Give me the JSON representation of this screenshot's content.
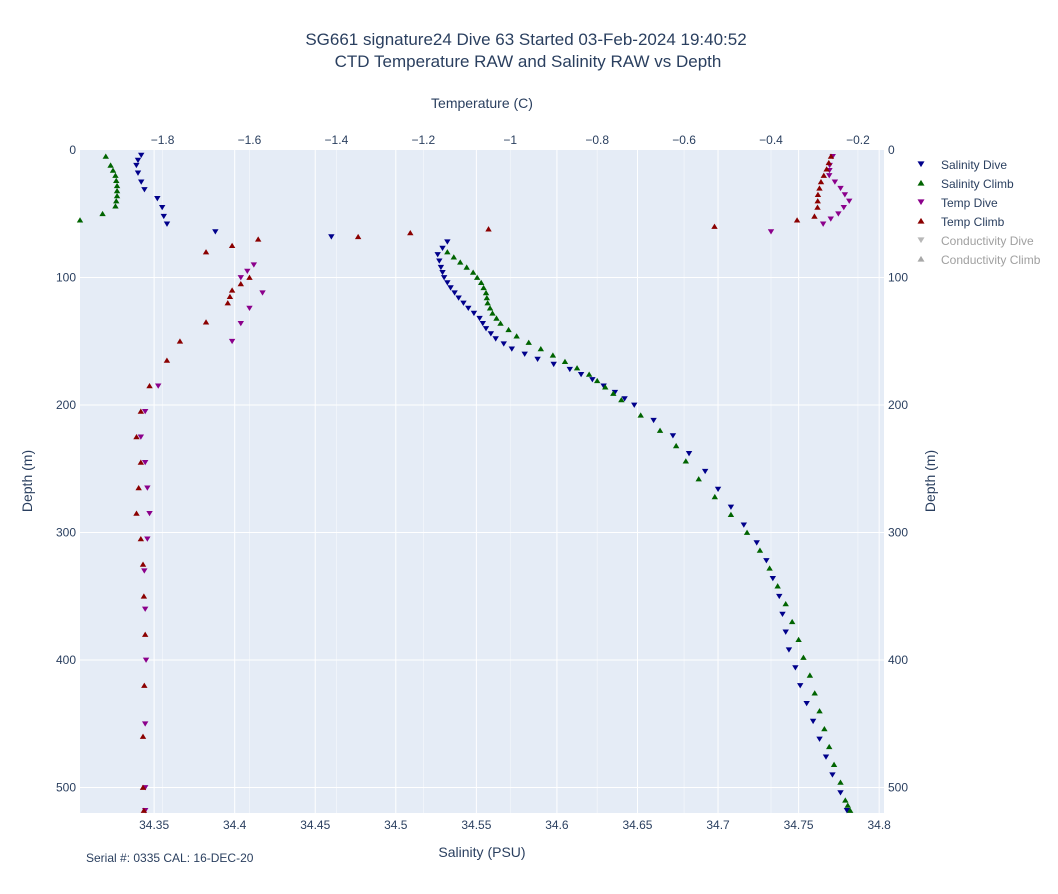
{
  "chart_data": {
    "type": "scatter",
    "title": "SG661 signature24 Dive 63 Started 03-Feb-2024 19:40:52",
    "subtitle": "CTD Temperature RAW and Salinity RAW vs Depth",
    "xlabel_bottom": "Salinity (PSU)",
    "xlabel_top": "Temperature (C)",
    "ylabel_left": "Depth (m)",
    "ylabel_right": "Depth (m)",
    "salinity_range": [
      34.304,
      34.803
    ],
    "temperature_range": [
      -1.99,
      -0.14
    ],
    "depth_range": [
      0,
      520
    ],
    "salinity_ticks": [
      34.35,
      34.4,
      34.45,
      34.5,
      34.55,
      34.6,
      34.65,
      34.7,
      34.75,
      34.8
    ],
    "temperature_ticks": [
      -1.8,
      -1.6,
      -1.4,
      -1.2,
      -1,
      -0.8,
      -0.6,
      -0.4,
      -0.2
    ],
    "depth_ticks": [
      0,
      100,
      200,
      300,
      400,
      500
    ],
    "grid": true,
    "legend_position": "right",
    "series": [
      {
        "name": "Salinity Dive",
        "axis": "salinity",
        "color": "#00008b",
        "marker": "triangle-down",
        "points": [
          [
            34.342,
            4
          ],
          [
            34.34,
            8
          ],
          [
            34.339,
            12
          ],
          [
            34.34,
            18
          ],
          [
            34.342,
            25
          ],
          [
            34.344,
            31
          ],
          [
            34.352,
            38
          ],
          [
            34.355,
            45
          ],
          [
            34.356,
            52
          ],
          [
            34.358,
            58
          ],
          [
            34.388,
            64
          ],
          [
            34.532,
            72
          ],
          [
            34.526,
            82
          ],
          [
            34.528,
            92
          ],
          [
            34.53,
            100
          ],
          [
            34.534,
            108
          ],
          [
            34.539,
            116
          ],
          [
            34.545,
            124
          ],
          [
            34.552,
            132
          ],
          [
            34.556,
            140
          ],
          [
            34.562,
            148
          ],
          [
            34.572,
            156
          ],
          [
            34.588,
            164
          ],
          [
            34.608,
            172
          ],
          [
            34.622,
            180
          ],
          [
            34.636,
            190
          ],
          [
            34.648,
            200
          ],
          [
            34.66,
            212
          ],
          [
            34.672,
            224
          ],
          [
            34.682,
            238
          ],
          [
            34.692,
            252
          ],
          [
            34.7,
            266
          ],
          [
            34.708,
            280
          ],
          [
            34.716,
            294
          ],
          [
            34.724,
            308
          ],
          [
            34.73,
            322
          ],
          [
            34.734,
            336
          ],
          [
            34.738,
            350
          ],
          [
            34.74,
            364
          ],
          [
            34.742,
            378
          ],
          [
            34.744,
            392
          ],
          [
            34.748,
            406
          ],
          [
            34.751,
            420
          ],
          [
            34.755,
            434
          ],
          [
            34.759,
            448
          ],
          [
            34.763,
            462
          ],
          [
            34.767,
            476
          ],
          [
            34.771,
            490
          ],
          [
            34.776,
            504
          ],
          [
            34.78,
            518
          ]
        ]
      },
      {
        "name": "Salinity Climb",
        "axis": "salinity",
        "color": "#006400",
        "marker": "triangle-up",
        "points": [
          [
            34.32,
            5
          ],
          [
            34.323,
            12
          ],
          [
            34.326,
            20
          ],
          [
            34.327,
            28
          ],
          [
            34.327,
            36
          ],
          [
            34.326,
            44
          ],
          [
            34.318,
            50
          ],
          [
            34.304,
            55
          ],
          [
            34.532,
            80
          ],
          [
            34.54,
            88
          ],
          [
            34.548,
            96
          ],
          [
            34.553,
            104
          ],
          [
            34.556,
            112
          ],
          [
            34.557,
            120
          ],
          [
            34.56,
            128
          ],
          [
            34.565,
            136
          ],
          [
            34.575,
            146
          ],
          [
            34.59,
            156
          ],
          [
            34.605,
            166
          ],
          [
            34.62,
            176
          ],
          [
            34.63,
            186
          ],
          [
            34.64,
            196
          ],
          [
            34.652,
            208
          ],
          [
            34.664,
            220
          ],
          [
            34.674,
            232
          ],
          [
            34.68,
            244
          ],
          [
            34.688,
            258
          ],
          [
            34.698,
            272
          ],
          [
            34.708,
            286
          ],
          [
            34.718,
            300
          ],
          [
            34.726,
            314
          ],
          [
            34.732,
            328
          ],
          [
            34.737,
            342
          ],
          [
            34.742,
            356
          ],
          [
            34.746,
            370
          ],
          [
            34.75,
            384
          ],
          [
            34.753,
            398
          ],
          [
            34.757,
            412
          ],
          [
            34.76,
            426
          ],
          [
            34.763,
            440
          ],
          [
            34.766,
            454
          ],
          [
            34.769,
            468
          ],
          [
            34.772,
            482
          ],
          [
            34.776,
            496
          ],
          [
            34.779,
            510
          ],
          [
            34.782,
            518
          ]
        ]
      },
      {
        "name": "Temp Dive",
        "axis": "temperature",
        "color": "#8b008b",
        "marker": "triangle-down",
        "points": [
          [
            -0.258,
            5
          ],
          [
            -0.265,
            12
          ],
          [
            -0.266,
            20
          ],
          [
            -0.24,
            30
          ],
          [
            -0.22,
            40
          ],
          [
            -0.245,
            50
          ],
          [
            -0.28,
            58
          ],
          [
            -0.4,
            64
          ],
          [
            -1.59,
            90
          ],
          [
            -1.62,
            100
          ],
          [
            -1.57,
            112
          ],
          [
            -1.6,
            124
          ],
          [
            -1.62,
            136
          ],
          [
            -1.64,
            150
          ],
          [
            -1.81,
            185
          ],
          [
            -1.84,
            205
          ],
          [
            -1.85,
            225
          ],
          [
            -1.84,
            245
          ],
          [
            -1.835,
            265
          ],
          [
            -1.83,
            285
          ],
          [
            -1.835,
            305
          ],
          [
            -1.842,
            330
          ],
          [
            -1.84,
            360
          ],
          [
            -1.838,
            400
          ],
          [
            -1.84,
            450
          ],
          [
            -1.84,
            500
          ],
          [
            -1.84,
            518
          ]
        ]
      },
      {
        "name": "Temp Climb",
        "axis": "temperature",
        "color": "#8b0000",
        "marker": "triangle-up",
        "points": [
          [
            -0.262,
            5
          ],
          [
            -0.272,
            15
          ],
          [
            -0.285,
            25
          ],
          [
            -0.292,
            35
          ],
          [
            -0.293,
            45
          ],
          [
            -0.3,
            52
          ],
          [
            -0.34,
            55
          ],
          [
            -0.53,
            60
          ],
          [
            -1.05,
            62
          ],
          [
            -1.23,
            65
          ],
          [
            -1.35,
            68
          ],
          [
            -1.58,
            70
          ],
          [
            -1.7,
            80
          ],
          [
            -1.6,
            100
          ],
          [
            -1.64,
            110
          ],
          [
            -1.65,
            120
          ],
          [
            -1.7,
            135
          ],
          [
            -1.76,
            150
          ],
          [
            -1.79,
            165
          ],
          [
            -1.83,
            185
          ],
          [
            -1.85,
            205
          ],
          [
            -1.86,
            225
          ],
          [
            -1.85,
            245
          ],
          [
            -1.855,
            265
          ],
          [
            -1.86,
            285
          ],
          [
            -1.85,
            305
          ],
          [
            -1.845,
            325
          ],
          [
            -1.843,
            350
          ],
          [
            -1.84,
            380
          ],
          [
            -1.842,
            420
          ],
          [
            -1.845,
            460
          ],
          [
            -1.845,
            500
          ],
          [
            -1.843,
            518
          ]
        ]
      },
      {
        "name": "Conductivity Dive",
        "axis": "salinity",
        "color": "#b8b8b8",
        "marker": "triangle-down",
        "hidden": true,
        "points": []
      },
      {
        "name": "Conductivity Climb",
        "axis": "salinity",
        "color": "#a8a8a8",
        "marker": "triangle-up",
        "hidden": true,
        "points": []
      }
    ],
    "footnote": "Serial #: 0335  CAL: 16-DEC-20"
  },
  "colors": {
    "plot_background": "#e5ecf6",
    "grid": "#ffffff",
    "text": "#2a3f5f",
    "legend_hidden_text": "#a0a0a0"
  }
}
